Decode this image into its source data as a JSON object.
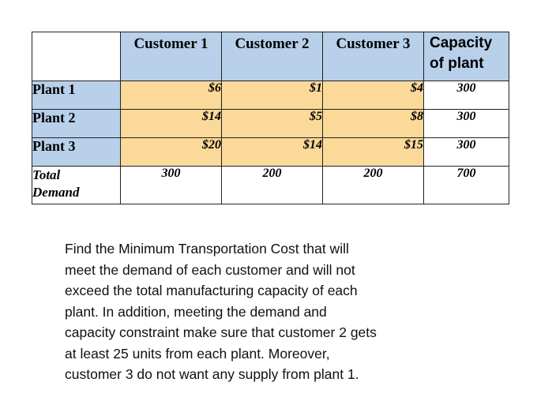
{
  "table": {
    "headers": [
      "Customer 1",
      "Customer 2",
      "Customer 3"
    ],
    "capacity_header": [
      "Capacity",
      "of plant"
    ],
    "rows": [
      {
        "plant": "Plant 1",
        "costs": [
          "$6",
          "$1",
          "$4"
        ],
        "capacity": "300"
      },
      {
        "plant": "Plant 2",
        "costs": [
          "$14",
          "$5",
          "$8"
        ],
        "capacity": "300"
      },
      {
        "plant": "Plant 3",
        "costs": [
          "$20",
          "$14",
          "$15"
        ],
        "capacity": "300"
      }
    ],
    "demand_label": [
      "Total",
      "Demand"
    ],
    "demand": [
      "300",
      "200",
      "200"
    ],
    "total": "700"
  },
  "problem_lines": [
    "Find the Minimum Transportation Cost that will",
    "meet the demand of each customer and will not",
    "exceed the total manufacturing capacity of each",
    "plant.  In addition, meeting the demand and",
    "capacity constraint make sure that customer 2 gets",
    "at least 25 units from each plant. Moreover,",
    "customer 3 do not want any supply from plant 1."
  ],
  "colors": {
    "header_fill": "#b8d0ea",
    "cost_fill": "#fbd999",
    "border": "#222222"
  }
}
